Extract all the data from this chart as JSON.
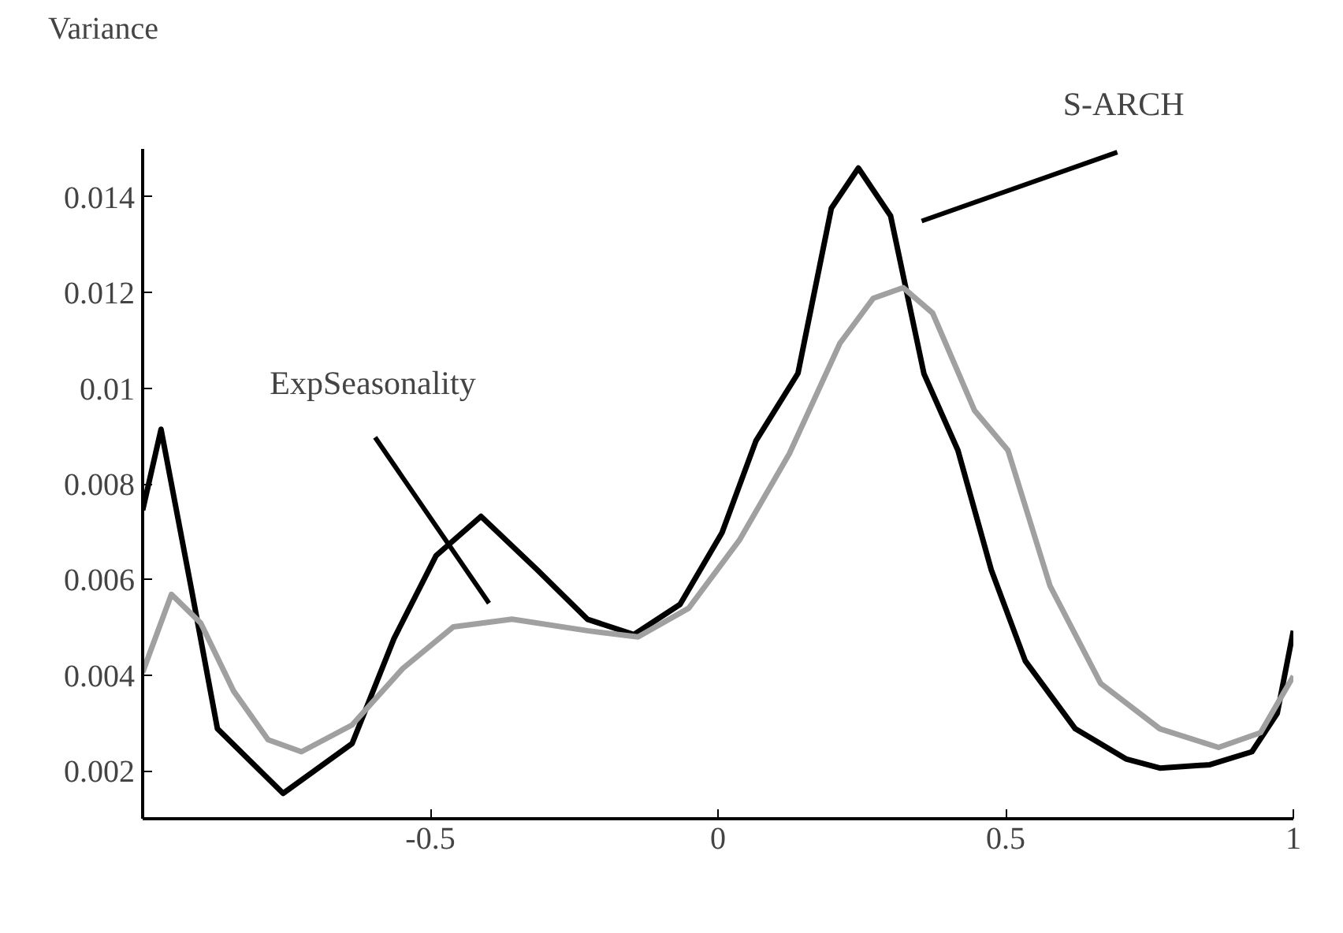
{
  "chart_data": {
    "type": "line",
    "ylabel": "Variance",
    "xlim": [
      -1,
      1
    ],
    "ylim": [
      0.001,
      0.015
    ],
    "xticks": [
      -0.5,
      0,
      0.5,
      1
    ],
    "yticks": [
      0.002,
      0.004,
      0.006,
      0.008,
      0.01,
      0.012,
      0.014
    ],
    "grid": false,
    "marker": "none",
    "line_style": "solid",
    "annotations": [
      "S-ARCH",
      "ExpSeasonality"
    ],
    "series": [
      {
        "color": "#000000",
        "x": [
          -1,
          -0.968,
          -0.914,
          -0.87,
          -0.756,
          -0.636,
          -0.563,
          -0.49,
          -0.412,
          -0.314,
          -0.227,
          -0.146,
          -0.066,
          0.007,
          0.066,
          0.139,
          0.197,
          0.244,
          0.3,
          0.358,
          0.417,
          0.475,
          0.534,
          0.621,
          0.709,
          0.768,
          0.855,
          0.928,
          0.972,
          1
        ],
        "values": [
          0.00745,
          0.00914,
          0.00572,
          0.00288,
          0.00153,
          0.00257,
          0.00477,
          0.0065,
          0.00732,
          0.0062,
          0.00517,
          0.00485,
          0.00548,
          0.00698,
          0.0089,
          0.01031,
          0.01376,
          0.0146,
          0.0136,
          0.0103,
          0.0087,
          0.0062,
          0.0043,
          0.00288,
          0.00225,
          0.00206,
          0.00213,
          0.0024,
          0.0032,
          0.00493
        ]
      },
      {
        "color": "#a0a0a0",
        "x": [
          -1,
          -0.95,
          -0.899,
          -0.842,
          -0.782,
          -0.724,
          -0.636,
          -0.548,
          -0.46,
          -0.358,
          -0.227,
          -0.139,
          -0.051,
          0.037,
          0.124,
          0.212,
          0.27,
          0.322,
          0.373,
          0.446,
          0.504,
          0.577,
          0.665,
          0.768,
          0.87,
          0.943,
          1
        ],
        "values": [
          0.00406,
          0.00569,
          0.00509,
          0.00367,
          0.00265,
          0.0024,
          0.00296,
          0.00414,
          0.00501,
          0.00517,
          0.00493,
          0.0048,
          0.0054,
          0.00682,
          0.00863,
          0.01094,
          0.01188,
          0.0121,
          0.01157,
          0.00953,
          0.0087,
          0.00587,
          0.00383,
          0.00288,
          0.00249,
          0.0028,
          0.00398
        ]
      }
    ]
  }
}
